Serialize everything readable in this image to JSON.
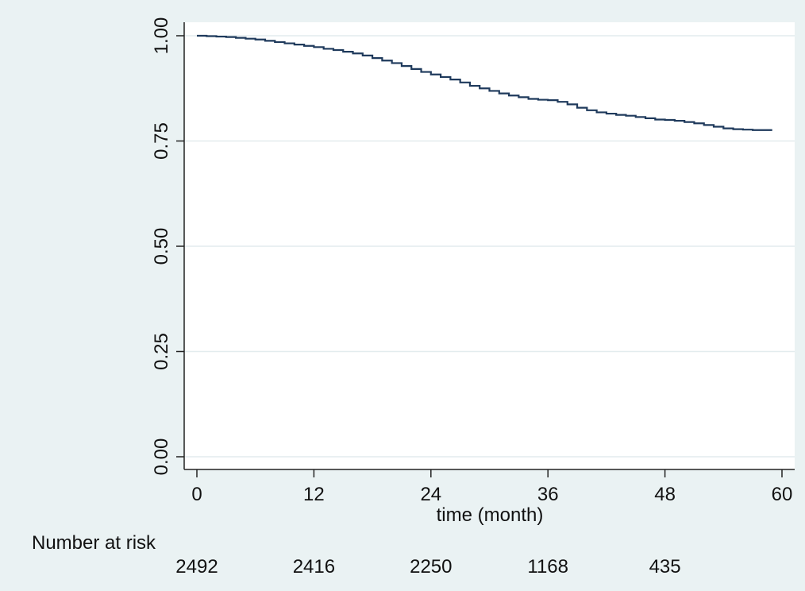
{
  "chart_data": {
    "type": "line",
    "title": "",
    "xlabel": "time (month)",
    "ylabel": "",
    "xlim": [
      0,
      60
    ],
    "ylim": [
      0,
      1
    ],
    "x_ticks": [
      "0",
      "12",
      "24",
      "36",
      "48",
      "60"
    ],
    "y_ticks": [
      "0.00",
      "0.25",
      "0.50",
      "0.75",
      "1.00"
    ],
    "grid": true,
    "legend": "none",
    "step": true,
    "series": [
      {
        "color": "#1f3a5c",
        "x": [
          0,
          1,
          2,
          3,
          4,
          5,
          6,
          7,
          8,
          9,
          10,
          11,
          12,
          13,
          14,
          15,
          16,
          17,
          18,
          19,
          20,
          21,
          22,
          23,
          24,
          25,
          26,
          27,
          28,
          29,
          30,
          31,
          32,
          33,
          34,
          35,
          36,
          37,
          38,
          39,
          40,
          41,
          42,
          43,
          44,
          45,
          46,
          47,
          48,
          49,
          50,
          51,
          52,
          53,
          54,
          55,
          56,
          57,
          58,
          59
        ],
        "y": [
          1.0,
          0.999,
          0.998,
          0.997,
          0.995,
          0.993,
          0.991,
          0.988,
          0.985,
          0.982,
          0.979,
          0.976,
          0.973,
          0.969,
          0.966,
          0.962,
          0.958,
          0.953,
          0.947,
          0.941,
          0.935,
          0.928,
          0.921,
          0.914,
          0.908,
          0.902,
          0.896,
          0.889,
          0.881,
          0.875,
          0.869,
          0.863,
          0.858,
          0.854,
          0.85,
          0.848,
          0.847,
          0.843,
          0.837,
          0.829,
          0.823,
          0.818,
          0.815,
          0.812,
          0.81,
          0.807,
          0.804,
          0.801,
          0.8,
          0.798,
          0.795,
          0.792,
          0.788,
          0.784,
          0.78,
          0.778,
          0.777,
          0.776,
          0.776,
          0.776
        ]
      }
    ],
    "number_at_risk": {
      "label": "Number at risk",
      "times": [
        0,
        12,
        24,
        36,
        48
      ],
      "values": [
        "2492",
        "2416",
        "2250",
        "1168",
        "435"
      ]
    }
  }
}
